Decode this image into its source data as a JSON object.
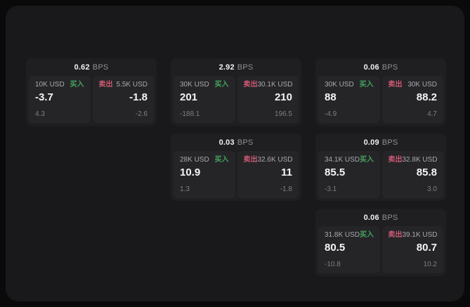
{
  "colors": {
    "buy_accent": "#44a35e",
    "sell_accent": "#d05a74",
    "panel_bg": "#19191b",
    "card_bg": "#1f1f21",
    "subpanel_bg": "#252528"
  },
  "labels": {
    "buy": "买入",
    "sell": "卖出",
    "bps": "BPS"
  },
  "cards": [
    {
      "row": 1,
      "col": 1,
      "bps": "0.62",
      "buy": {
        "amount": "10K USD",
        "value": "-3.7",
        "sub": "4.3"
      },
      "sell": {
        "amount": "5.5K USD",
        "value": "-1.8",
        "sub": "-2.6"
      }
    },
    {
      "row": 1,
      "col": 2,
      "bps": "2.92",
      "buy": {
        "amount": "30K USD",
        "value": "201",
        "sub": "-188.1"
      },
      "sell": {
        "amount": "30.1K USD",
        "value": "210",
        "sub": "196.5"
      }
    },
    {
      "row": 1,
      "col": 3,
      "bps": "0.06",
      "buy": {
        "amount": "30K USD",
        "value": "88",
        "sub": "-4.9"
      },
      "sell": {
        "amount": "30K USD",
        "value": "88.2",
        "sub": "4.7"
      }
    },
    {
      "row": 2,
      "col": 2,
      "bps": "0.03",
      "buy": {
        "amount": "28K USD",
        "value": "10.9",
        "sub": "1.3"
      },
      "sell": {
        "amount": "32.6K USD",
        "value": "11",
        "sub": "-1.8"
      }
    },
    {
      "row": 2,
      "col": 3,
      "bps": "0.09",
      "buy": {
        "amount": "34.1K USD",
        "value": "85.5",
        "sub": "-3.1"
      },
      "sell": {
        "amount": "32.8K USD",
        "value": "85.8",
        "sub": "3.0"
      }
    },
    {
      "row": 3,
      "col": 3,
      "bps": "0.06",
      "buy": {
        "amount": "31.8K USD",
        "value": "80.5",
        "sub": "-10.8"
      },
      "sell": {
        "amount": "39.1K USD",
        "value": "80.7",
        "sub": "10.2"
      }
    }
  ]
}
